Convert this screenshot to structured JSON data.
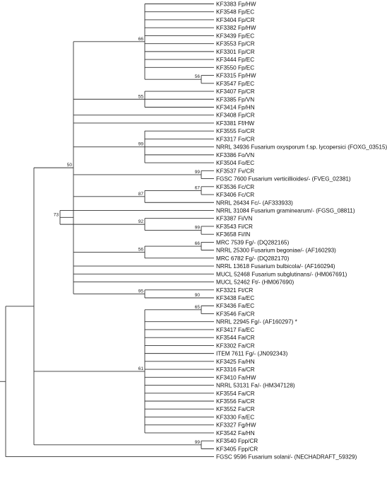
{
  "tree": {
    "line_color": "#333333",
    "text_color": "#111111",
    "taxa": [
      "KF3383 Fp/HW",
      "KF3548 Fp/EC",
      "KF3404 Fp/CR",
      "KF3382 Fp/HW",
      "KF3439 Fp/EC",
      "KF3553 Fp/CR",
      "KF3301 Fp/CR",
      "KF3444 Fp/EC",
      "KF3550 Fp/EC",
      "KF3315 Fp/HW",
      "KF3547 Fp/EC",
      "KF3407 Fp/CR",
      "KF3385 Fp/VN",
      "KF3414 Fp/HN",
      "KF3408 Fp/CR",
      "KF3381 Ff/HW",
      "KF3555 Fo/CR",
      "KF3317 Fo/CR",
      "NRRL 34936 Fusarium oxysporum f.sp. lycopersici (FOXG_03515)",
      "KF3386 Fo/VN",
      "KF3504 Fo/EC",
      "KF3537 Fv/CR",
      "FGSC 7600 Fusarium verticillioides/- (FVEG_02381)",
      "KF3536 Fc/CR",
      "KF3406 Fc/CR",
      "NRRL 26434 Fc/- (AF333933)",
      "NRRL 31084 Fusarium graminearum/- (FGSG_08811)",
      "KF3387 Fi/VN",
      "KF3543 Fi/CR",
      "KF3658 Fi/IN",
      "MRC 7539 Fg/- (DQ282165)",
      "NRRL 25300 Fusarium begoniae/- (AF160293)",
      "MRC 6782 Fg/- (DQ282170)",
      "NRRL 13618 Fusarium bulbicola/- (AF160294)",
      "MUCL 52468 Fusarium subglutinans/- (HM067691)",
      "MUCL 52462 Ft/- (HM067690)",
      "KF3321 Ft/CR",
      "KF3438 Fa/EC",
      "KF3436 Fa/EC",
      "KF3546 Fa/CR",
      "NRRL 22945 Fg/- (AF160297) *",
      "KF3417 Fa/EC",
      "KF3544 Fa/CR",
      "KF3302 Fa/CR",
      "ITEM 7611 Fg/- (JN092343)",
      "KF3425 Fa/HN",
      "KF3316 Fa/CR",
      "KF3410 Fa/HW",
      "NRRL 53131 Fa/- (HM347128)",
      "KF3554 Fa/CR",
      "KF3556 Fa/CR",
      "KF3552 Fa/CR",
      "KF3330 Fa/EC",
      "KF3327 Fg/HW",
      "KF3542 Fa/HN",
      "KF3540 Fpp/CR",
      "KF3405 Fpp/CR",
      "FGSC 9596 Fusarium solani/- (NECHADRAFT_59329)"
    ],
    "support_values": [
      "66",
      "56",
      "55",
      "99",
      "99",
      "67",
      "87",
      "73",
      "66",
      "92",
      "99",
      "56",
      "95",
      "90",
      "65",
      "50",
      "61",
      "99"
    ]
  }
}
